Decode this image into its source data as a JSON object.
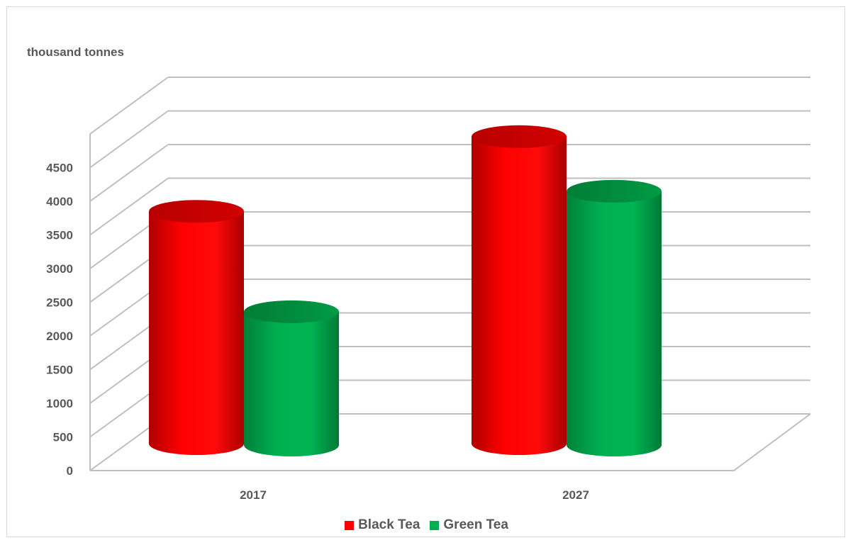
{
  "chart_data": {
    "type": "bar",
    "style": "3d-cylinder",
    "unit_label": "thousand tonnes",
    "categories": [
      "2017",
      "2027"
    ],
    "series": [
      {
        "name": "Black Tea",
        "color": "#ff0000",
        "values": [
          3450,
          4560
        ]
      },
      {
        "name": "Green Tea",
        "color": "#00b050",
        "values": [
          1980,
          3770
        ]
      }
    ],
    "ylim": [
      0,
      4500
    ],
    "yticks": [
      0,
      500,
      1000,
      1500,
      2000,
      2500,
      3000,
      3500,
      4000,
      4500
    ],
    "grid": true,
    "legend_position": "bottom"
  }
}
